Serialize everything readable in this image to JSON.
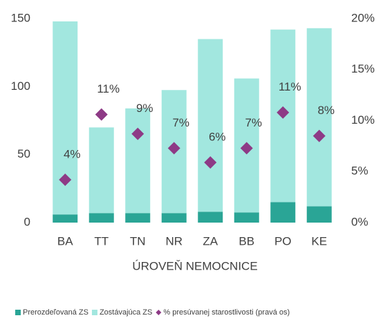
{
  "chart_data": {
    "type": "bar",
    "stacked": true,
    "categories": [
      "BA",
      "TT",
      "TN",
      "NR",
      "ZA",
      "BB",
      "PO",
      "KE"
    ],
    "x_label": "ÚROVEŇ NEMOCNICE",
    "series": [
      {
        "name": "Prerozdeľovaná ZS",
        "color": "#2aa596",
        "values": [
          6,
          7,
          7,
          7,
          8,
          7.5,
          15,
          12
        ]
      },
      {
        "name": "Zostávajúca ZS",
        "color": "#a2e7df",
        "values": [
          142,
          63,
          77,
          90.5,
          127,
          98.5,
          127,
          131
        ]
      },
      {
        "name": "% presúvanej starostlivosti (pravá os)",
        "color": "#8e3a86",
        "axis": "y2",
        "marker": "diamond",
        "values": [
          4.2,
          10.6,
          8.7,
          7.3,
          5.9,
          7.3,
          10.8,
          8.5
        ],
        "value_labels": [
          "4%",
          "11%",
          "9%",
          "7%",
          "6%",
          "7%",
          "11%",
          "8%"
        ]
      }
    ],
    "ylim": [
      0,
      150
    ],
    "yticks": [
      0,
      50,
      100,
      150
    ],
    "y2lim": [
      0,
      20
    ],
    "y2ticks": [
      {
        "value": 0,
        "label": "0%"
      },
      {
        "value": 5,
        "label": "5%"
      },
      {
        "value": 10,
        "label": "10%"
      },
      {
        "value": 15,
        "label": "15%"
      },
      {
        "value": 20,
        "label": "20%"
      }
    ],
    "legend": "bottom"
  }
}
